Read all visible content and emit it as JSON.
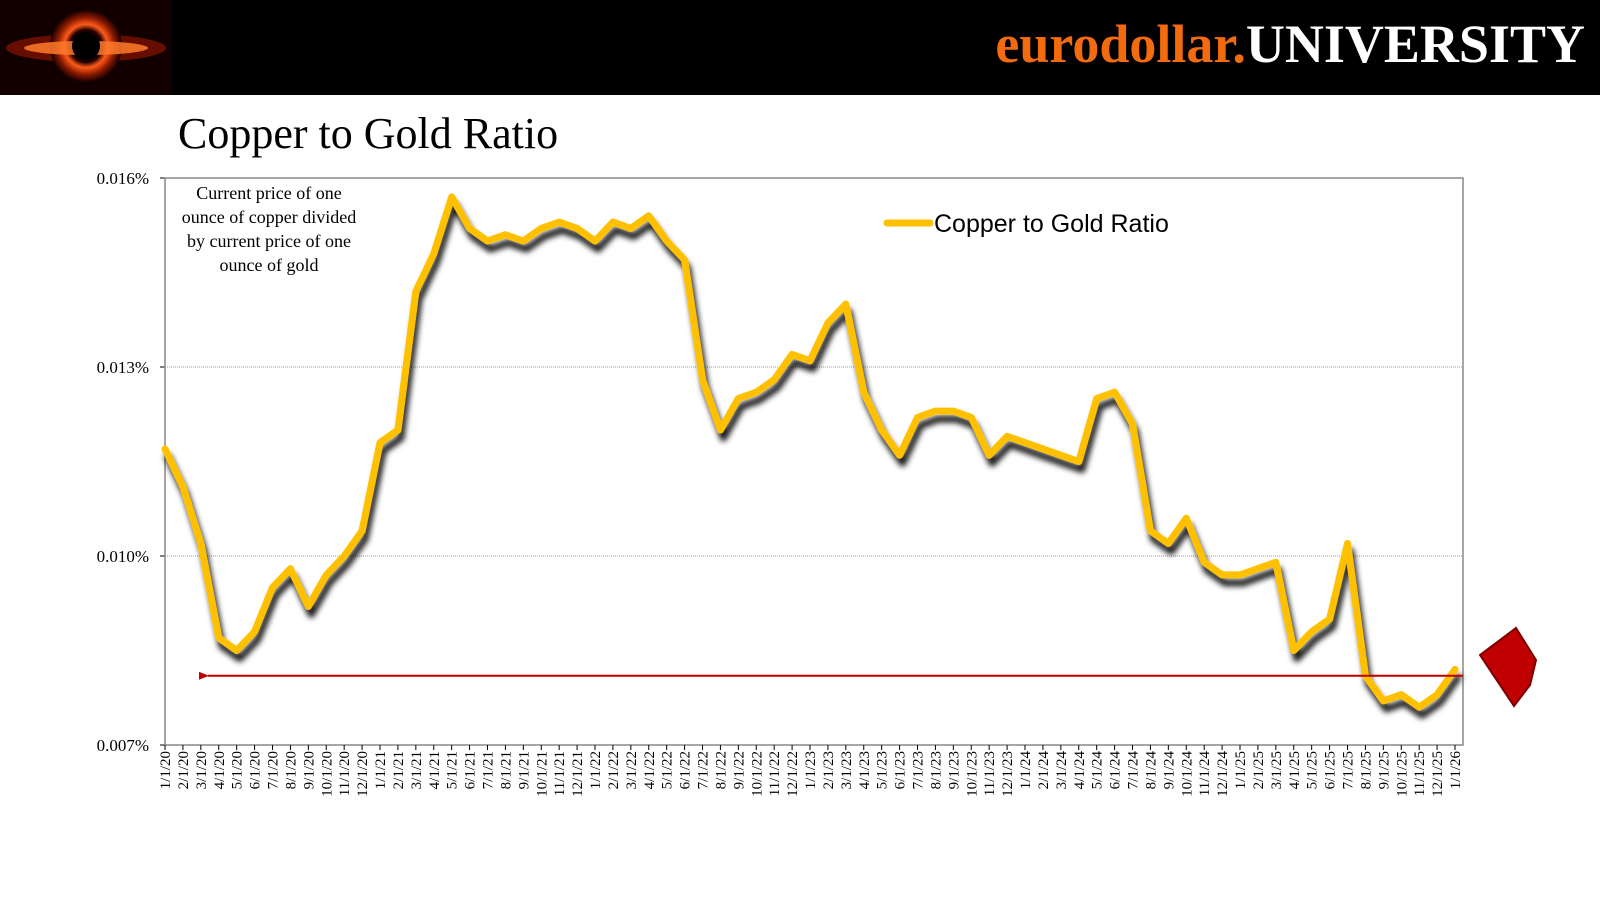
{
  "header": {
    "brand": "eurodollar.",
    "brand_suffix": "UNIVERSITY"
  },
  "chart_data": {
    "type": "line",
    "title": "Copper to Gold Ratio",
    "annotation_lines": [
      "Current price of one",
      "ounce of copper divided",
      "by current price of one",
      "ounce of gold"
    ],
    "categories": [
      "1/1/20",
      "2/1/20",
      "3/1/20",
      "4/1/20",
      "5/1/20",
      "6/1/20",
      "7/1/20",
      "8/1/20",
      "9/1/20",
      "10/1/20",
      "11/1/20",
      "12/1/20",
      "1/1/21",
      "2/1/21",
      "3/1/21",
      "4/1/21",
      "5/1/21",
      "6/1/21",
      "7/1/21",
      "8/1/21",
      "9/1/21",
      "10/1/21",
      "11/1/21",
      "12/1/21",
      "1/1/22",
      "2/1/22",
      "3/1/22",
      "4/1/22",
      "5/1/22",
      "6/1/22",
      "7/1/22",
      "8/1/22",
      "9/1/22",
      "10/1/22",
      "11/1/22",
      "12/1/22",
      "1/1/23",
      "2/1/23",
      "3/1/23",
      "4/1/23",
      "5/1/23",
      "6/1/23",
      "7/1/23",
      "8/1/23",
      "9/1/23",
      "10/1/23",
      "11/1/23",
      "12/1/23",
      "1/1/24",
      "2/1/24",
      "3/1/24",
      "4/1/24",
      "5/1/24",
      "6/1/24",
      "7/1/24",
      "8/1/24",
      "9/1/24",
      "10/1/24",
      "11/1/24",
      "12/1/24",
      "1/1/25",
      "2/1/25",
      "3/1/25",
      "4/1/25",
      "5/1/25",
      "6/1/25",
      "7/1/25",
      "8/1/25",
      "9/1/25",
      "10/1/25",
      "11/1/25",
      "12/1/25",
      "1/1/26"
    ],
    "series": [
      {
        "name": "Copper to Gold Ratio",
        "color": "#ffc000",
        "values": [
          0.0117,
          0.0111,
          0.0102,
          0.0087,
          0.0085,
          0.0088,
          0.0095,
          0.0098,
          0.0092,
          0.0097,
          0.01,
          0.0104,
          0.0118,
          0.012,
          0.0142,
          0.0148,
          0.0157,
          0.0152,
          0.015,
          0.0151,
          0.015,
          0.0152,
          0.0153,
          0.0152,
          0.015,
          0.0153,
          0.0152,
          0.0154,
          0.015,
          0.0147,
          0.0128,
          0.012,
          0.0125,
          0.0126,
          0.0128,
          0.0132,
          0.0131,
          0.0137,
          0.014,
          0.0126,
          0.012,
          0.0116,
          0.0122,
          0.0123,
          0.0123,
          0.0122,
          0.0116,
          0.0119,
          0.0118,
          0.0117,
          0.0116,
          0.0115,
          0.0125,
          0.0126,
          0.0121,
          0.0104,
          0.0102,
          0.0106,
          0.0099,
          0.0097,
          0.0097,
          0.0098,
          0.0099,
          0.0085,
          0.0088,
          0.009,
          0.0102,
          0.0081,
          0.0077,
          0.0078,
          0.0076,
          0.0078,
          0.0082
        ]
      }
    ],
    "ylim": [
      0.007,
      0.016
    ],
    "yticks": [
      {
        "value": 0.007,
        "label": "0.007%"
      },
      {
        "value": 0.01,
        "label": "0.010%"
      },
      {
        "value": 0.013,
        "label": "0.013%"
      },
      {
        "value": 0.016,
        "label": "0.016%"
      }
    ],
    "grid": true,
    "legend": "top-right",
    "reference_line": {
      "value": 0.0081,
      "color": "#c00000"
    }
  }
}
